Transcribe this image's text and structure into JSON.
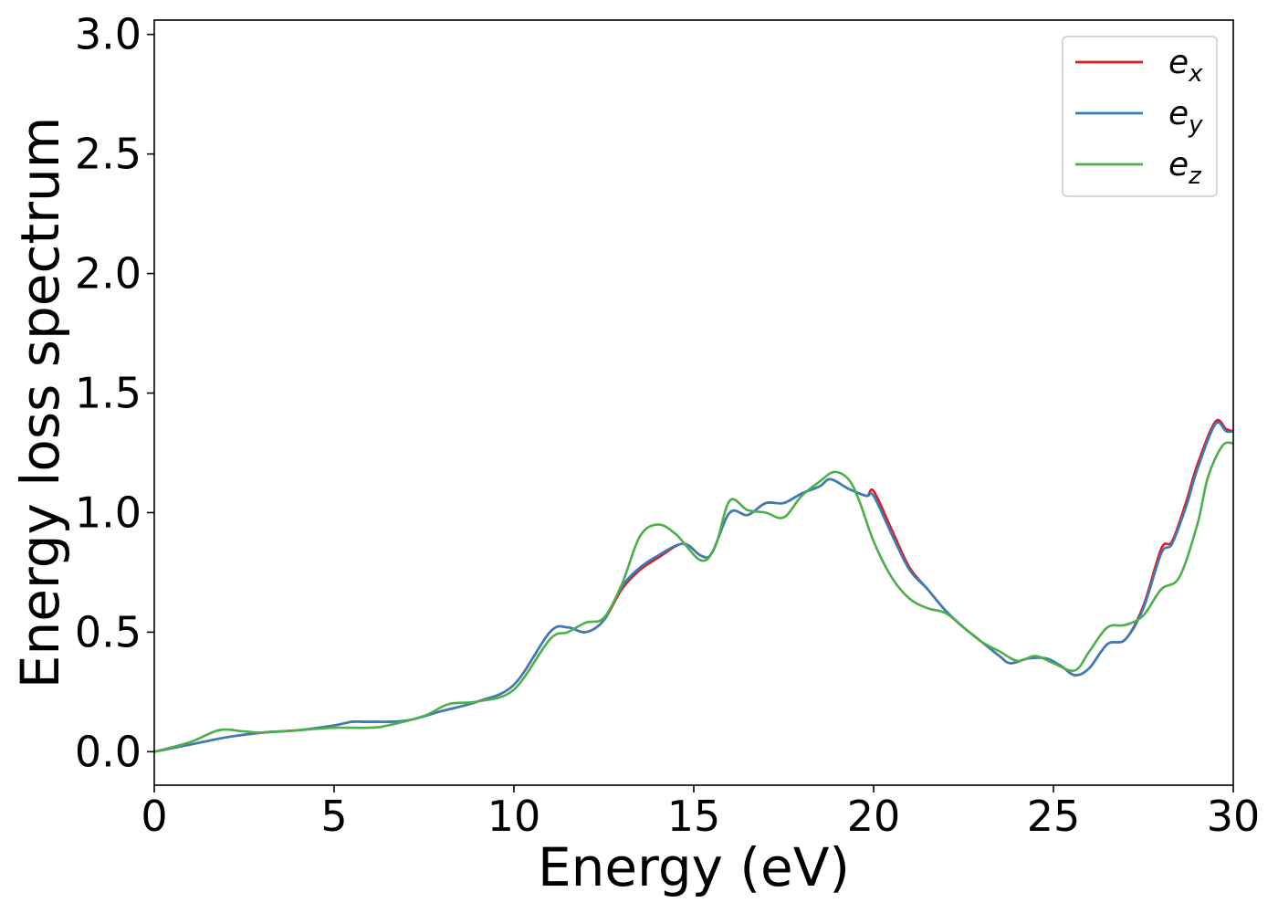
{
  "chart_data": {
    "type": "line",
    "xlabel": "Energy (eV)",
    "ylabel": "Energy loss spectrum",
    "xlim": [
      0,
      30
    ],
    "ylim": [
      -0.14,
      3.06
    ],
    "xticks": [
      0,
      5,
      10,
      15,
      20,
      25,
      30
    ],
    "xtick_labels": [
      "0",
      "5",
      "10",
      "15",
      "20",
      "25",
      "30"
    ],
    "yticks": [
      0.0,
      0.5,
      1.0,
      1.5,
      2.0,
      2.5,
      3.0
    ],
    "ytick_labels": [
      "0.0",
      "0.5",
      "1.0",
      "1.5",
      "2.0",
      "2.5",
      "3.0"
    ],
    "grid": false,
    "legend": {
      "placement": "top-right",
      "entries": [
        {
          "base": "e",
          "sub": "x",
          "color": "#e41a1c"
        },
        {
          "base": "e",
          "sub": "y",
          "color": "#377eb8"
        },
        {
          "base": "e",
          "sub": "z",
          "color": "#4daf4a"
        }
      ]
    },
    "series": [
      {
        "name": "e_x",
        "color": "#e41a1c",
        "x": [
          0,
          1,
          2,
          3,
          4,
          5,
          5.5,
          6,
          7,
          8,
          9,
          10,
          11,
          11.5,
          12,
          12.5,
          13,
          13.5,
          14,
          14.7,
          15.2,
          15.5,
          16,
          16.5,
          17,
          17.5,
          18,
          18.5,
          18.8,
          19.3,
          19.8,
          20,
          20.5,
          21,
          21.5,
          22,
          22.5,
          23,
          23.5,
          23.8,
          24.3,
          24.8,
          25.2,
          25.6,
          26,
          26.5,
          27,
          27.5,
          28,
          28.3,
          28.7,
          29,
          29.5,
          29.8,
          30
        ],
        "y": [
          0.0,
          0.03,
          0.06,
          0.08,
          0.09,
          0.11,
          0.125,
          0.125,
          0.13,
          0.17,
          0.21,
          0.28,
          0.5,
          0.52,
          0.5,
          0.55,
          0.68,
          0.76,
          0.81,
          0.87,
          0.82,
          0.83,
          1.0,
          0.99,
          1.04,
          1.04,
          1.08,
          1.11,
          1.14,
          1.1,
          1.07,
          1.09,
          0.93,
          0.77,
          0.68,
          0.59,
          0.52,
          0.46,
          0.4,
          0.37,
          0.39,
          0.39,
          0.36,
          0.32,
          0.35,
          0.45,
          0.47,
          0.61,
          0.85,
          0.88,
          1.05,
          1.2,
          1.38,
          1.35,
          1.34
        ]
      },
      {
        "name": "e_y",
        "color": "#377eb8",
        "x": [
          0,
          1,
          2,
          3,
          4,
          5,
          5.5,
          6,
          7,
          8,
          9,
          10,
          11,
          11.5,
          12,
          12.5,
          13,
          13.5,
          14,
          14.7,
          15.2,
          15.5,
          16,
          16.5,
          17,
          17.5,
          18,
          18.5,
          18.8,
          19.3,
          19.8,
          20,
          20.5,
          21,
          21.5,
          22,
          22.5,
          23,
          23.5,
          23.8,
          24.3,
          24.8,
          25.2,
          25.6,
          26,
          26.5,
          27,
          27.5,
          28,
          28.3,
          28.7,
          29,
          29.5,
          29.8,
          30
        ],
        "y": [
          0.0,
          0.03,
          0.06,
          0.08,
          0.09,
          0.11,
          0.125,
          0.125,
          0.13,
          0.17,
          0.21,
          0.28,
          0.5,
          0.52,
          0.5,
          0.55,
          0.69,
          0.77,
          0.82,
          0.87,
          0.82,
          0.83,
          1.0,
          0.99,
          1.04,
          1.04,
          1.08,
          1.11,
          1.14,
          1.1,
          1.07,
          1.07,
          0.91,
          0.76,
          0.68,
          0.59,
          0.52,
          0.46,
          0.4,
          0.37,
          0.39,
          0.39,
          0.36,
          0.32,
          0.35,
          0.45,
          0.47,
          0.6,
          0.83,
          0.87,
          1.03,
          1.18,
          1.37,
          1.34,
          1.34
        ]
      },
      {
        "name": "e_z",
        "color": "#4daf4a",
        "x": [
          0,
          1,
          1.8,
          2.5,
          3,
          4,
          5,
          6,
          6.5,
          7.5,
          8.2,
          9,
          10,
          11,
          11.5,
          12,
          12.5,
          13,
          13.5,
          14,
          14.5,
          15.2,
          15.6,
          16,
          16.5,
          17,
          17.5,
          18,
          18.5,
          18.9,
          19.3,
          19.6,
          20,
          20.5,
          21,
          21.5,
          22,
          22.5,
          23,
          23.5,
          24,
          24.5,
          25,
          25.6,
          26,
          26.5,
          27,
          27.5,
          28,
          28.5,
          29,
          29.3,
          29.7,
          30
        ],
        "y": [
          0.0,
          0.04,
          0.09,
          0.085,
          0.08,
          0.09,
          0.1,
          0.1,
          0.11,
          0.15,
          0.2,
          0.21,
          0.26,
          0.47,
          0.5,
          0.54,
          0.56,
          0.7,
          0.9,
          0.95,
          0.91,
          0.8,
          0.86,
          1.05,
          1.01,
          1.0,
          0.98,
          1.07,
          1.13,
          1.17,
          1.14,
          1.05,
          0.88,
          0.73,
          0.64,
          0.6,
          0.58,
          0.52,
          0.46,
          0.42,
          0.38,
          0.4,
          0.37,
          0.34,
          0.42,
          0.52,
          0.53,
          0.57,
          0.68,
          0.73,
          0.95,
          1.15,
          1.28,
          1.29
        ]
      }
    ]
  }
}
